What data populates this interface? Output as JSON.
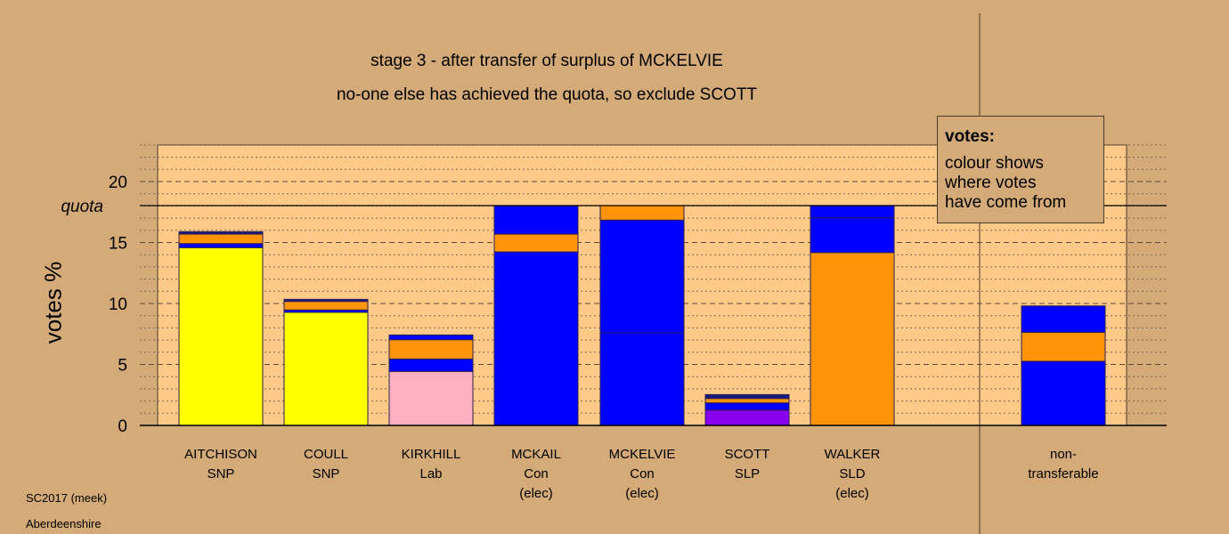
{
  "chart_data": {
    "type": "bar",
    "stacked": true,
    "title": "stage 3 - after transfer of surplus of MCKELVIE",
    "subtitle": "no-one else has achieved the quota, so exclude SCOTT",
    "ylabel": "votes %",
    "ylim": [
      0,
      23
    ],
    "yticks": [
      0,
      5,
      10,
      15,
      20
    ],
    "quota": 18.03,
    "quota_label": "quota",
    "grid": true,
    "categories": [
      {
        "lines": [
          "AITCHISON",
          "SNP"
        ]
      },
      {
        "lines": [
          "COULL",
          "SNP"
        ]
      },
      {
        "lines": [
          "KIRKHILL",
          "Lab"
        ]
      },
      {
        "lines": [
          "MCKAIL",
          "Con",
          "(elec)"
        ]
      },
      {
        "lines": [
          "MCKELVIE",
          "Con",
          "(elec)"
        ]
      },
      {
        "lines": [
          "SCOTT",
          "SLP"
        ]
      },
      {
        "lines": [
          "WALKER",
          "SLD",
          "(elec)"
        ]
      },
      {
        "lines": [
          "non-",
          "transferable"
        ]
      }
    ],
    "segments": [
      [
        {
          "v": 14.58,
          "c": "#ffff00"
        },
        {
          "v": 0.33,
          "c": "#0000ff"
        },
        {
          "v": 0.78,
          "c": "#ff9408"
        },
        {
          "v": 0.2,
          "c": "#1a1a80"
        }
      ],
      [
        {
          "v": 9.27,
          "c": "#ffff00"
        },
        {
          "v": 0.2,
          "c": "#0000ff"
        },
        {
          "v": 0.7,
          "c": "#ff9408"
        },
        {
          "v": 0.17,
          "c": "#1a1a80"
        }
      ],
      [
        {
          "v": 4.43,
          "c": "#ffb0c0"
        },
        {
          "v": 1.02,
          "c": "#0000ff"
        },
        {
          "v": 1.58,
          "c": "#ff9408"
        },
        {
          "v": 0.39,
          "c": "#0000ff"
        }
      ],
      [
        {
          "v": 14.23,
          "c": "#0000ff"
        },
        {
          "v": 1.46,
          "c": "#ff9408"
        },
        {
          "v": 2.34,
          "c": "#0000ff"
        }
      ],
      [
        {
          "v": 7.59,
          "c": "#0000ff"
        },
        {
          "v": 9.25,
          "c": "#0000ff"
        },
        {
          "v": 1.19,
          "c": "#ff9408"
        }
      ],
      [
        {
          "v": 1.26,
          "c": "#8800ee"
        },
        {
          "v": 0.59,
          "c": "#0000ff"
        },
        {
          "v": 0.36,
          "c": "#ff9408"
        },
        {
          "v": 0.32,
          "c": "#1a1a80"
        }
      ],
      [
        {
          "v": 14.18,
          "c": "#ff9408"
        },
        {
          "v": 2.85,
          "c": "#0000ff"
        },
        {
          "v": 1.0,
          "c": "#0000ff"
        }
      ],
      [
        {
          "v": 5.26,
          "c": "#0000ff"
        },
        {
          "v": 2.38,
          "c": "#ff9408"
        },
        {
          "v": 2.16,
          "c": "#0000ff"
        }
      ]
    ],
    "legend": {
      "title": "votes:",
      "lines": [
        "colour shows",
        "where votes",
        "have come from"
      ],
      "placement": "top-right"
    }
  },
  "footer": {
    "line1": "SC2017 (meek)",
    "line2": "Aberdeenshire"
  }
}
